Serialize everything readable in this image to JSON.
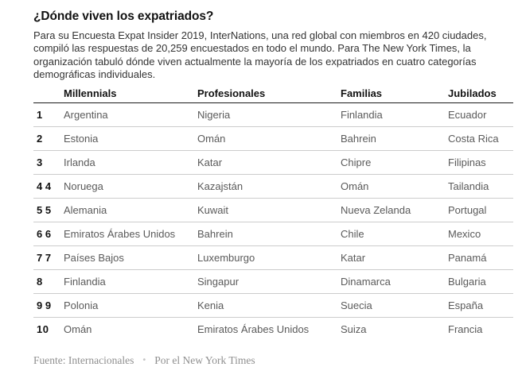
{
  "header": {
    "title": "¿Dónde viven los expatriados?",
    "intro": "Para su Encuesta Expat Insider 2019, InterNations, una red global con miembros en 420 ciudades, compiló las respuestas de 20,259 encuestados en todo el mundo. Para The New York Times, la organización tabuló dónde viven actualmente la mayoría de los expatriados en cuatro categorías demográficas individuales."
  },
  "table": {
    "headers": [
      "Millennials",
      "Profesionales",
      "Familias",
      "Jubilados"
    ],
    "rows": [
      {
        "rank": "1",
        "cells": [
          "Argentina",
          "Nigeria",
          "Finlandia",
          "Ecuador"
        ]
      },
      {
        "rank": "2",
        "cells": [
          "Estonia",
          "Omán",
          "Bahrein",
          "Costa Rica"
        ]
      },
      {
        "rank": "3",
        "cells": [
          "Irlanda",
          "Katar",
          "Chipre",
          "Filipinas"
        ]
      },
      {
        "rank": "4 4",
        "cells": [
          "Noruega",
          "Kazajstán",
          "Omán",
          "Tailandia"
        ]
      },
      {
        "rank": "5 5",
        "cells": [
          "Alemania",
          "Kuwait",
          "Nueva Zelanda",
          "Portugal"
        ]
      },
      {
        "rank": "6 6",
        "cells": [
          "Emiratos Árabes Unidos",
          "Bahrein",
          "Chile",
          "Mexico"
        ]
      },
      {
        "rank": "7 7",
        "cells": [
          "Países Bajos",
          "Luxemburgo",
          "Katar",
          "Panamá"
        ]
      },
      {
        "rank": "8",
        "cells": [
          "Finlandia",
          "Singapur",
          "Dinamarca",
          "Bulgaria"
        ]
      },
      {
        "rank": "9 9",
        "cells": [
          "Polonia",
          "Kenia",
          "Suecia",
          "España"
        ]
      },
      {
        "rank": "10",
        "cells": [
          "Omán",
          "Emiratos Árabes Unidos",
          "Suiza",
          "Francia"
        ]
      }
    ]
  },
  "footer": {
    "source": "Fuente: Internacionales",
    "separator": "•",
    "byline": "Por el New York Times"
  },
  "colors": {
    "title_text": "#121212",
    "body_text": "#333333",
    "cell_text": "#5a5a5a",
    "header_rule": "#1a1a1a",
    "row_rule": "#cccccc",
    "footer_text": "#8f8f8f"
  },
  "chart_data": {
    "type": "table",
    "title": "¿Dónde viven los expatriados?",
    "subtitle": "Encuesta Expat Insider 2019, InterNations — 20,259 encuestados, miembros en 420 ciudades; top 10 lugares donde viven los expatriados por categoría demográfica",
    "columns": [
      "",
      "Millennials",
      "Profesionales",
      "Familias",
      "Jubilados"
    ],
    "rows": [
      [
        1,
        "Argentina",
        "Nigeria",
        "Finlandia",
        "Ecuador"
      ],
      [
        2,
        "Estonia",
        "Omán",
        "Bahrein",
        "Costa Rica"
      ],
      [
        3,
        "Irlanda",
        "Katar",
        "Chipre",
        "Filipinas"
      ],
      [
        4,
        "Noruega",
        "Kazajstán",
        "Omán",
        "Tailandia"
      ],
      [
        5,
        "Alemania",
        "Kuwait",
        "Nueva Zelanda",
        "Portugal"
      ],
      [
        6,
        "Emiratos Árabes Unidos",
        "Bahrein",
        "Chile",
        "Mexico"
      ],
      [
        7,
        "Países Bajos",
        "Luxemburgo",
        "Katar",
        "Panamá"
      ],
      [
        8,
        "Finlandia",
        "Singapur",
        "Dinamarca",
        "Bulgaria"
      ],
      [
        9,
        "Polonia",
        "Kenia",
        "Suecia",
        "España"
      ],
      [
        10,
        "Omán",
        "Emiratos Árabes Unidos",
        "Suiza",
        "Francia"
      ]
    ],
    "source": "Fuente: Internacionales",
    "byline": "Por el New York Times"
  }
}
